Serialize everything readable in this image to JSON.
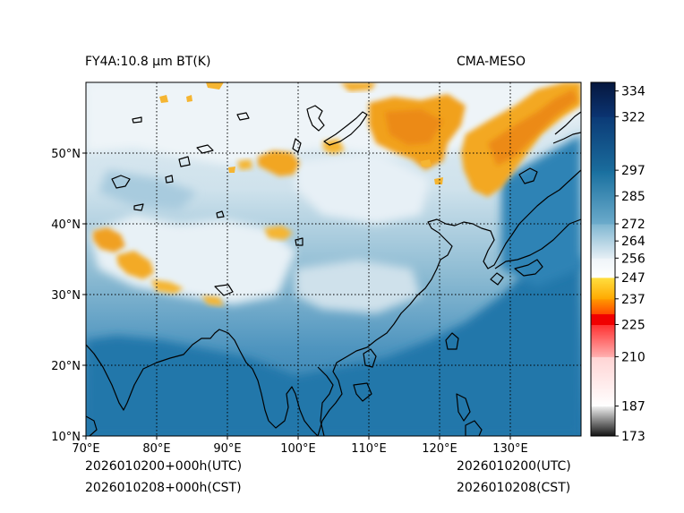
{
  "header": {
    "product": "FY4A:10.8 µm BT(K)",
    "source": "CMA-MESO"
  },
  "footer": {
    "run_utc": "2026010200+000h(UTC)",
    "run_cst": "2026010208+000h(CST)",
    "valid_utc": "2026010200(UTC)",
    "valid_cst": "2026010208(CST)"
  },
  "map": {
    "lon_range": [
      70,
      140
    ],
    "lat_range": [
      10,
      60
    ],
    "lon_ticks": [
      {
        "value": 70,
        "label": "70°E"
      },
      {
        "value": 80,
        "label": "80°E"
      },
      {
        "value": 90,
        "label": "90°E"
      },
      {
        "value": 100,
        "label": "100°E"
      },
      {
        "value": 110,
        "label": "110°E"
      },
      {
        "value": 120,
        "label": "120°E"
      },
      {
        "value": 130,
        "label": "130°E"
      }
    ],
    "lat_ticks": [
      {
        "value": 10,
        "label": "10°N"
      },
      {
        "value": 20,
        "label": "20°N"
      },
      {
        "value": 30,
        "label": "30°N"
      },
      {
        "value": 40,
        "label": "40°N"
      },
      {
        "value": 50,
        "label": "50°N"
      }
    ]
  },
  "colorbar": {
    "min": 173,
    "max": 338,
    "ticks": [
      {
        "value": 334,
        "label": "334"
      },
      {
        "value": 322,
        "label": "322"
      },
      {
        "value": 297,
        "label": "297"
      },
      {
        "value": 285,
        "label": "285"
      },
      {
        "value": 272,
        "label": "272"
      },
      {
        "value": 264,
        "label": "264"
      },
      {
        "value": 256,
        "label": "256"
      },
      {
        "value": 247,
        "label": "247"
      },
      {
        "value": 237,
        "label": "237"
      },
      {
        "value": 225,
        "label": "225"
      },
      {
        "value": 210,
        "label": "210"
      },
      {
        "value": 187,
        "label": "187"
      },
      {
        "value": 173,
        "label": "173"
      }
    ],
    "bands": [
      {
        "from": 173,
        "to": 187,
        "color": "#101010",
        "to_color": "#f2f2f2"
      },
      {
        "from": 187,
        "to": 210,
        "color": "#ffffff",
        "to_color": "#ffd4d4"
      },
      {
        "from": 210,
        "to": 225,
        "color": "#ffb0b0",
        "to_color": "#ff3030"
      },
      {
        "from": 225,
        "to": 230,
        "color": "#f00000",
        "to_color": "#f00000"
      },
      {
        "from": 230,
        "to": 237,
        "color": "#ff4a00",
        "to_color": "#ff9a00"
      },
      {
        "from": 237,
        "to": 247,
        "color": "#ffa800",
        "to_color": "#ffe040"
      },
      {
        "from": 247,
        "to": 256,
        "color": "#ffffff",
        "to_color": "#eef4f8"
      },
      {
        "from": 256,
        "to": 272,
        "color": "#e6eff5",
        "to_color": "#7eb6d1"
      },
      {
        "from": 272,
        "to": 297,
        "color": "#6cabcb",
        "to_color": "#176e9e"
      },
      {
        "from": 297,
        "to": 322,
        "color": "#1a6c9c",
        "to_color": "#0b3a76"
      },
      {
        "from": 322,
        "to": 338,
        "color": "#0b3472",
        "to_color": "#06173e"
      }
    ]
  },
  "colors": {
    "cold_cloud": "#f2a623",
    "cloud_white": "#f0f5f8",
    "mid": "#8dbcd4",
    "warm_sea": "#2a7eb0",
    "coast": "#000000"
  }
}
